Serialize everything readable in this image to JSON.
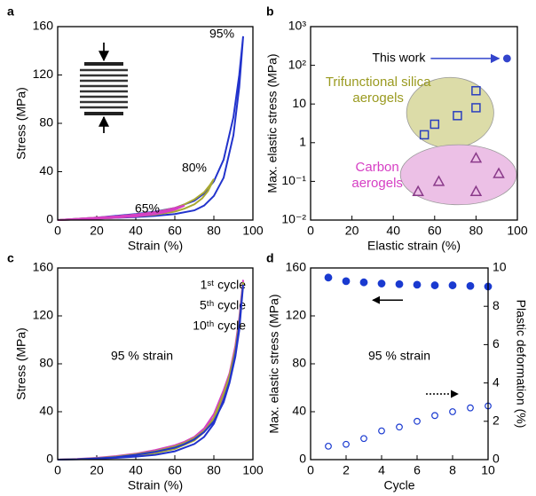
{
  "chart_data": [
    {
      "type": "line",
      "panel_label": "a",
      "xlabel": "Strain (%)",
      "ylabel": "Stress (MPa)",
      "xlim": [
        0,
        100
      ],
      "xticks": [
        0,
        20,
        40,
        60,
        80,
        100
      ],
      "ylim": [
        0,
        160
      ],
      "yticks": [
        0,
        40,
        80,
        120,
        160
      ],
      "series": [
        {
          "name": "95%",
          "color": "#2233cc",
          "x": [
            0,
            10,
            20,
            30,
            40,
            50,
            60,
            70,
            75,
            80,
            85,
            90,
            93,
            95,
            93,
            90,
            85,
            80,
            75,
            70,
            60,
            50,
            40,
            30,
            20,
            10,
            0
          ],
          "values": [
            0,
            1,
            2,
            3.5,
            5,
            7,
            10,
            16,
            22,
            32,
            50,
            85,
            120,
            152,
            110,
            70,
            35,
            20,
            12,
            8,
            5,
            3.5,
            2.5,
            1.8,
            1.2,
            0.6,
            0
          ]
        },
        {
          "name": "80%",
          "color": "#a8a832",
          "x": [
            0,
            10,
            20,
            30,
            40,
            50,
            60,
            65,
            70,
            75,
            78,
            80,
            77,
            74,
            70,
            65,
            60,
            50,
            40,
            30,
            20,
            10,
            0
          ],
          "values": [
            0,
            1,
            2,
            3,
            4.5,
            6.5,
            10,
            13,
            17,
            23,
            29,
            34,
            24,
            18,
            13,
            9.5,
            7,
            4.5,
            3,
            2,
            1.2,
            0.6,
            0
          ]
        },
        {
          "name": "65%",
          "color": "#d63fc4",
          "x": [
            0,
            10,
            20,
            30,
            40,
            50,
            55,
            60,
            65,
            60,
            55,
            50,
            40,
            30,
            20,
            10,
            0
          ],
          "values": [
            0,
            1,
            2,
            3,
            4.5,
            6.5,
            8,
            10,
            12,
            8.5,
            6.5,
            5,
            3,
            2,
            1.2,
            0.5,
            0
          ]
        }
      ]
    },
    {
      "type": "scatter",
      "panel_label": "b",
      "xlabel": "Elastic strain (%)",
      "ylabel": "Max. elastic stress (MPa)",
      "log_y": true,
      "xlim": [
        0,
        100
      ],
      "xticks": [
        0,
        20,
        40,
        60,
        80,
        100
      ],
      "ylim": [
        0.01,
        1000
      ],
      "yticks": [
        {
          "value": 0.01,
          "label": "10⁻²"
        },
        {
          "value": 0.1,
          "label": "10⁻¹"
        },
        1,
        10,
        {
          "value": 100,
          "label": "10²"
        },
        {
          "value": 1000,
          "label": "10³"
        }
      ],
      "series": [
        {
          "name": "This work",
          "color": "#3344cc",
          "marker": "circle",
          "filled": true,
          "x": [
            95
          ],
          "values": [
            150
          ]
        },
        {
          "name": "Trifunctional silica aerogels",
          "color": "#2a3fbf",
          "label_color": "#9a9a20",
          "region_color": "#dcdca8",
          "marker": "square",
          "filled": false,
          "x": [
            55,
            60,
            71,
            80,
            80
          ],
          "values": [
            1.6,
            3,
            5,
            8,
            22
          ]
        },
        {
          "name": "Carbon aerogels",
          "color": "#8a3a8a",
          "label_color": "#d63fc4",
          "region_color": "#ecc0e6",
          "marker": "triangle",
          "filled": false,
          "x": [
            52,
            62,
            80,
            91,
            80
          ],
          "values": [
            0.055,
            0.1,
            0.4,
            0.16,
            0.055
          ]
        }
      ]
    },
    {
      "type": "line",
      "panel_label": "c",
      "xlabel": "Strain (%)",
      "ylabel": "Stress (MPa)",
      "annotation": "95 % strain",
      "xlim": [
        0,
        100
      ],
      "xticks": [
        0,
        20,
        40,
        60,
        80,
        100
      ],
      "ylim": [
        0,
        160
      ],
      "yticks": [
        0,
        40,
        80,
        120,
        160
      ],
      "series": [
        {
          "name": "1ˢᵗ cycle",
          "color": "#d63fc4",
          "x": [
            0,
            10,
            20,
            30,
            40,
            50,
            60,
            65,
            70,
            75,
            80,
            85,
            88,
            91,
            93,
            95,
            93,
            91,
            88,
            85,
            80,
            75,
            70,
            60,
            50,
            40,
            30,
            20,
            10,
            0
          ],
          "values": [
            0,
            0.5,
            1.5,
            3,
            5,
            8,
            12,
            15,
            19,
            25,
            35,
            52,
            68,
            90,
            112,
            150,
            118,
            95,
            72,
            58,
            38,
            26,
            19,
            11,
            7,
            4.5,
            2.5,
            1.2,
            0.5,
            0
          ]
        },
        {
          "name": "5ᵗʰ cycle",
          "color": "#a8a832",
          "x": [
            0,
            10,
            20,
            30,
            40,
            50,
            60,
            65,
            70,
            75,
            80,
            85,
            88,
            91,
            93,
            95,
            93,
            91,
            88,
            85,
            80,
            75,
            70,
            60,
            50,
            40,
            30,
            20,
            10,
            0
          ],
          "values": [
            0,
            0.4,
            1.2,
            2.5,
            4.5,
            7,
            11,
            14,
            18,
            24,
            33,
            50,
            66,
            88,
            110,
            148,
            115,
            92,
            70,
            55,
            35,
            23,
            16,
            9,
            5.5,
            3.5,
            2,
            1,
            0.4,
            0
          ]
        },
        {
          "name": "10ᵗʰ cycle",
          "color": "#2233cc",
          "x": [
            0,
            10,
            20,
            30,
            40,
            50,
            60,
            65,
            70,
            75,
            80,
            85,
            88,
            91,
            93,
            95,
            93,
            91,
            88,
            85,
            80,
            75,
            70,
            60,
            50,
            40,
            30,
            20,
            10,
            0
          ],
          "values": [
            0,
            0.3,
            1,
            2,
            4,
            6.5,
            10,
            13,
            17,
            23,
            32,
            48,
            64,
            86,
            108,
            146,
            112,
            88,
            65,
            50,
            30,
            19,
            13,
            7,
            4,
            2.5,
            1.5,
            0.8,
            0.3,
            0
          ]
        }
      ]
    },
    {
      "type": "dual",
      "panel_label": "d",
      "xlabel": "Cycle",
      "ylabel": "Max. elastic stress (MPa)",
      "y2label": "Plastic deformation (%)",
      "annotation": "95 % strain",
      "xlim": [
        0,
        10
      ],
      "xticks": [
        0,
        2,
        4,
        6,
        8,
        10
      ],
      "ylim": [
        0,
        160
      ],
      "yticks": [
        0,
        40,
        80,
        120,
        160
      ],
      "y2lim": [
        0,
        10
      ],
      "y2ticks": [
        0,
        2,
        4,
        6,
        8,
        10
      ],
      "series": [
        {
          "color": "#1a3ad0",
          "filled": true,
          "x": [
            1,
            2,
            3,
            4,
            5,
            6,
            7,
            8,
            9,
            10
          ],
          "values": [
            152,
            149,
            148,
            147,
            146.5,
            146,
            145.5,
            145.5,
            145,
            144.5
          ]
        },
        {
          "color": "#1a3ad0",
          "filled": false,
          "axis": "y2",
          "x": [
            1,
            2,
            3,
            4,
            5,
            6,
            7,
            8,
            9,
            10
          ],
          "values": [
            0.7,
            0.8,
            1.1,
            1.5,
            1.7,
            2.0,
            2.3,
            2.5,
            2.7,
            2.8
          ]
        }
      ]
    }
  ]
}
